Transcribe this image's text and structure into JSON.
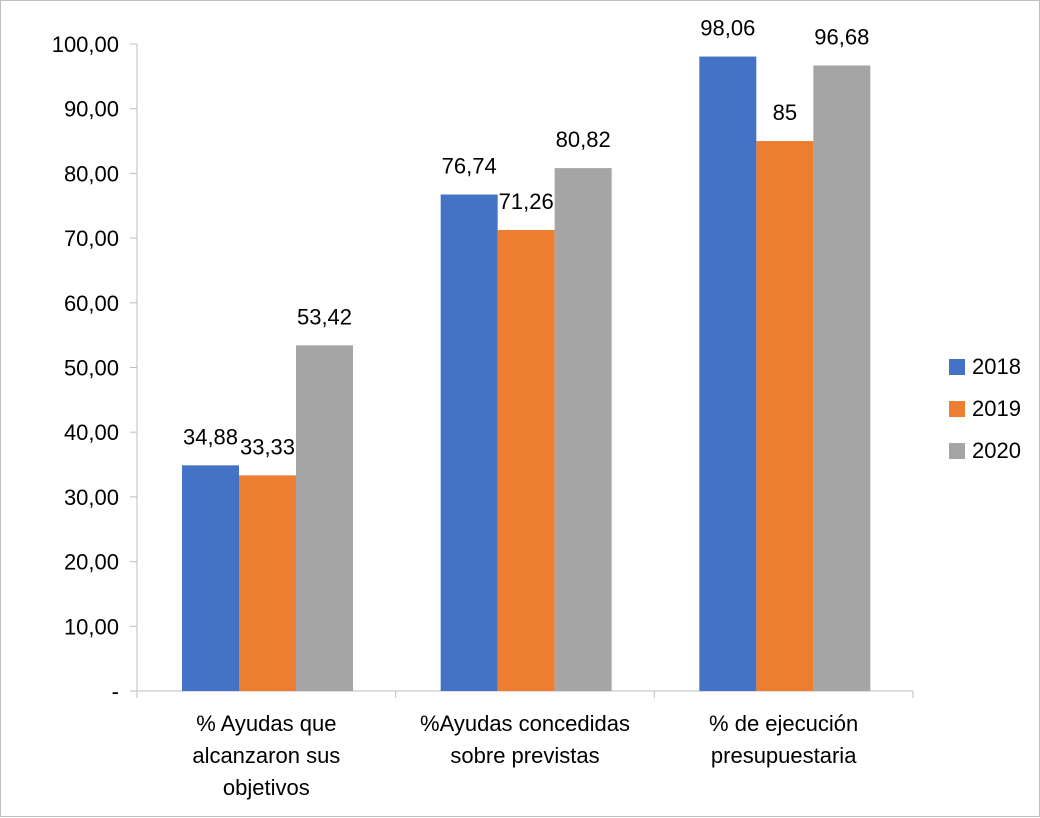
{
  "chart_data": {
    "type": "bar",
    "title": "",
    "xlabel": "",
    "ylabel": "",
    "ylim": [
      0,
      100
    ],
    "yticks": [
      0,
      10,
      20,
      30,
      40,
      50,
      60,
      70,
      80,
      90,
      100
    ],
    "ytick_labels": [
      "-",
      "10,00",
      "20,00",
      "30,00",
      "40,00",
      "50,00",
      "60,00",
      "70,00",
      "80,00",
      "90,00",
      "100,00"
    ],
    "categories": [
      [
        "% Ayudas que",
        "alcanzaron sus",
        "objetivos"
      ],
      [
        "%Ayudas concedidas",
        "sobre previstas"
      ],
      [
        "% de ejecución",
        "presupuestaria"
      ]
    ],
    "series": [
      {
        "name": "2018",
        "color": "#4472c4",
        "values": [
          34.88,
          76.74,
          98.06
        ],
        "labels": [
          "34,88",
          "76,74",
          "98,06"
        ]
      },
      {
        "name": "2019",
        "color": "#ed7d31",
        "values": [
          33.33,
          71.26,
          85
        ],
        "labels": [
          "33,33",
          "71,26",
          "85"
        ]
      },
      {
        "name": "2020",
        "color": "#a5a5a5",
        "values": [
          53.42,
          80.82,
          96.68
        ],
        "labels": [
          "53,42",
          "80,82",
          "96,68"
        ]
      }
    ],
    "grid": false,
    "legend": "right"
  }
}
